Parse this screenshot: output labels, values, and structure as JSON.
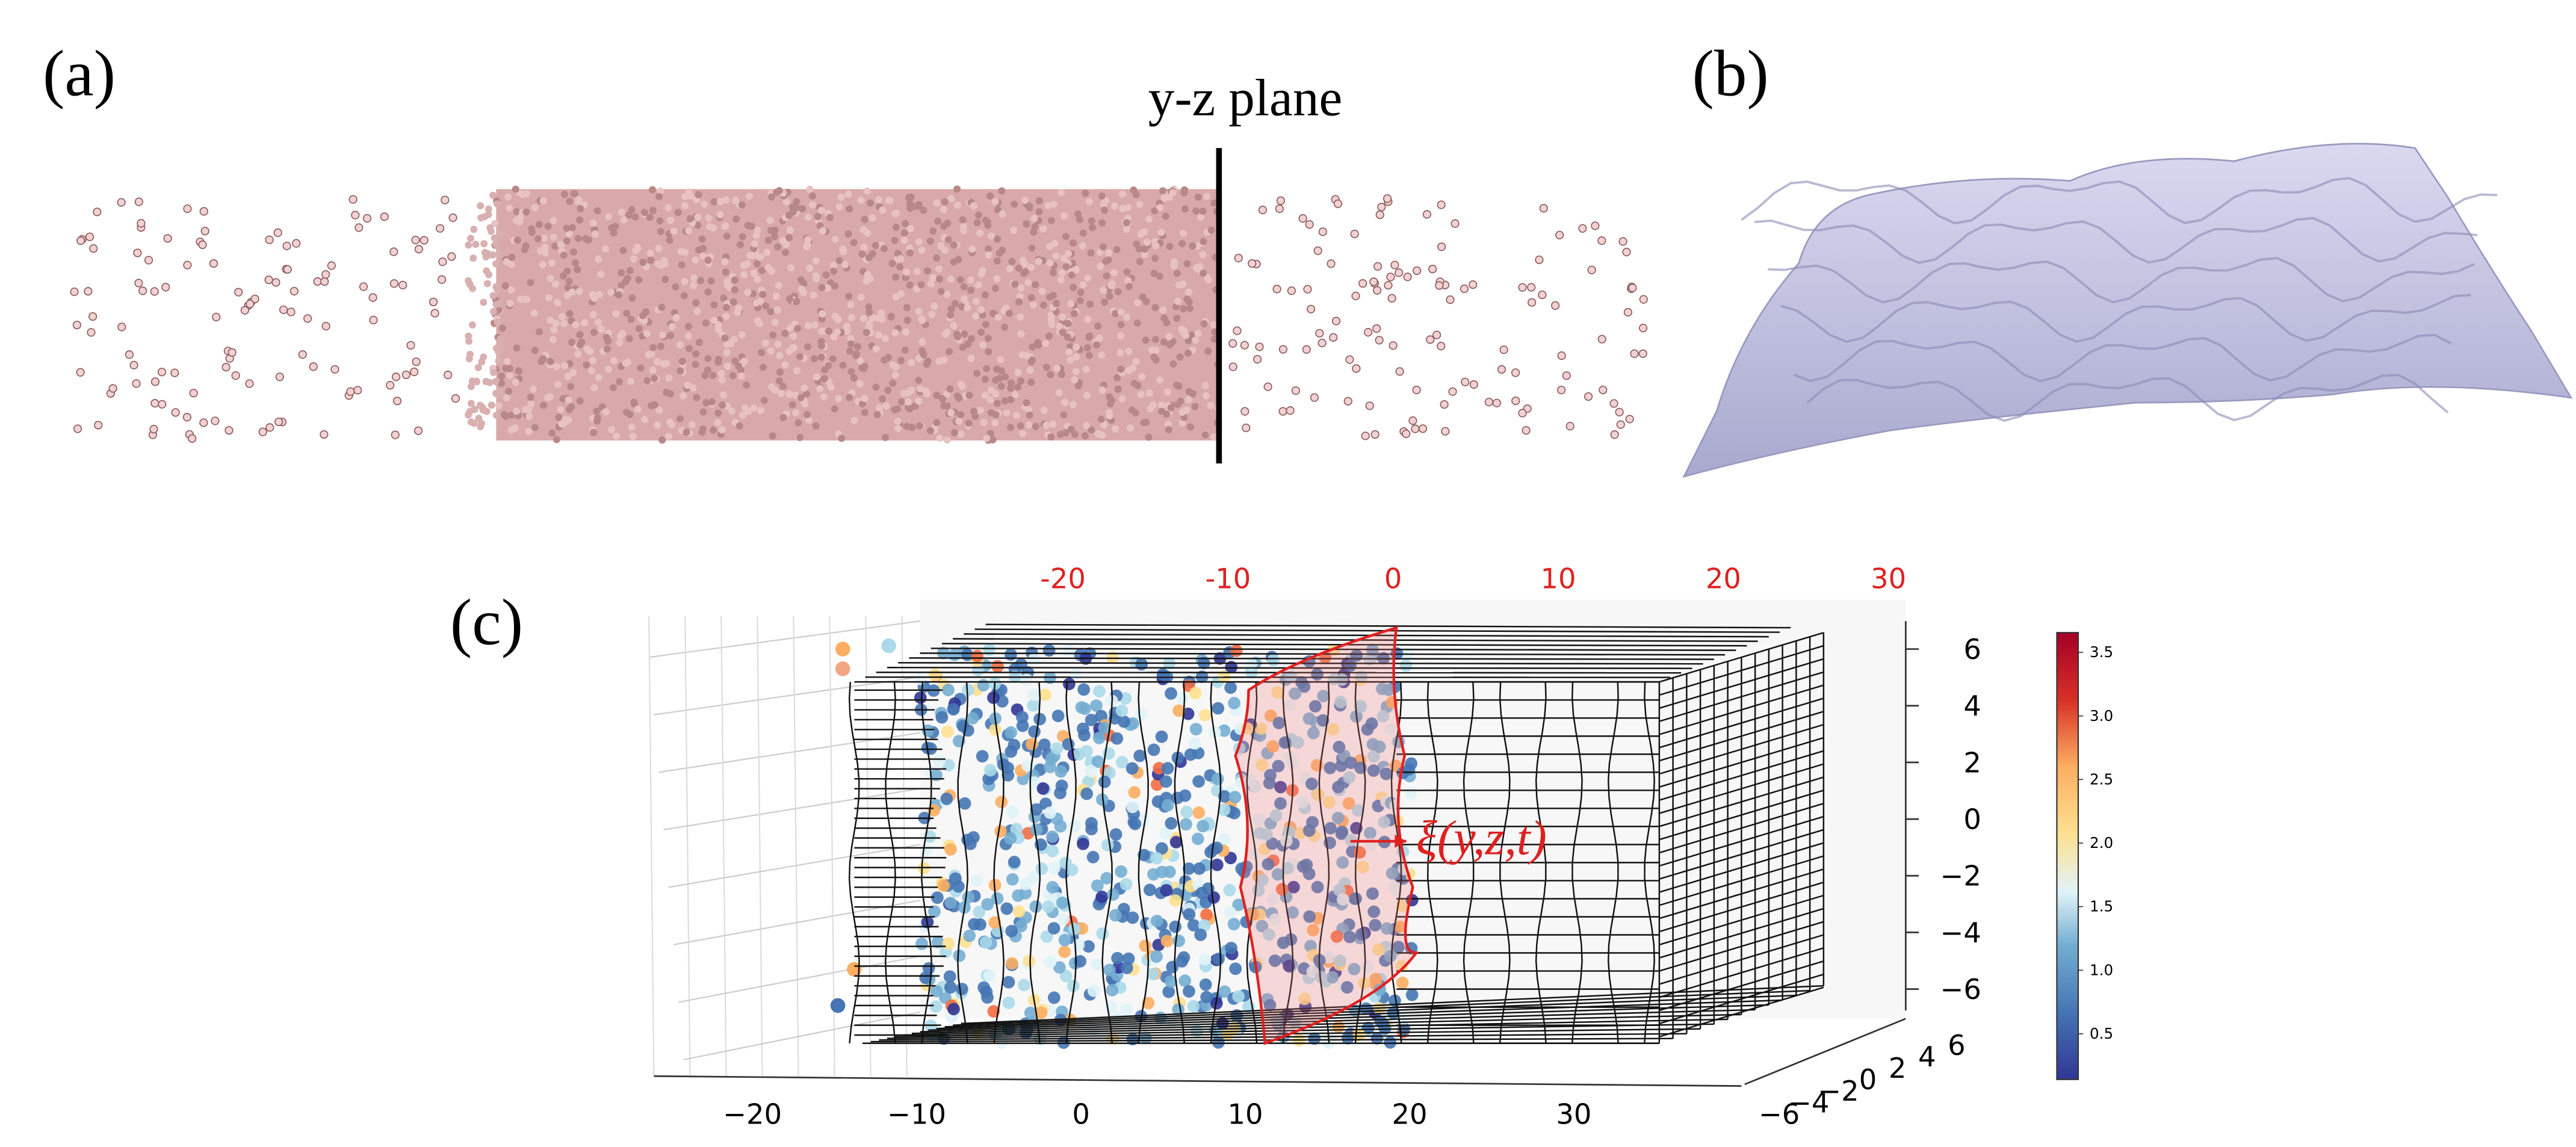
{
  "panel_a": {
    "label": "(a)",
    "plane_label": "y-z plane"
  },
  "panel_b": {
    "label": "(b)"
  },
  "panel_c": {
    "label": "(c)",
    "annotation": "ξ(y,z,t)",
    "top_ticks": [
      "-20",
      "-10",
      "0",
      "10",
      "20",
      "30"
    ],
    "x_ticks": [
      "−20",
      "−10",
      "0",
      "10",
      "20",
      "30"
    ],
    "depth_ticks": [
      "−6",
      "−4",
      "−2",
      "0",
      "2",
      "4",
      "6"
    ],
    "z_ticks": [
      "6",
      "4",
      "2",
      "0",
      "−2",
      "−4",
      "−6"
    ],
    "colorbar_ticks": [
      "3.5",
      "3.0",
      "2.5",
      "2.0",
      "1.5",
      "1.0",
      "0.5"
    ]
  }
}
